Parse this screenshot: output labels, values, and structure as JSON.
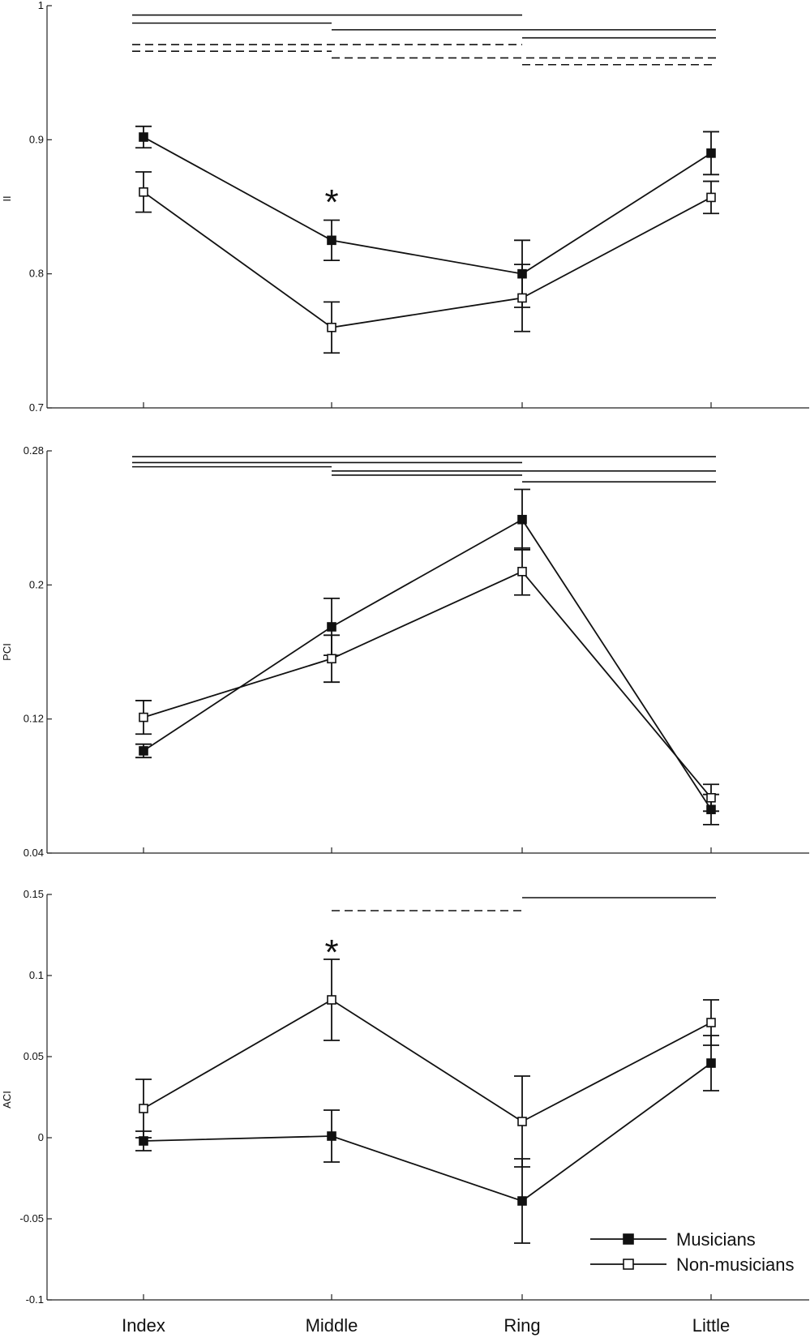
{
  "chart_data": [
    {
      "type": "line",
      "ylabel": "II",
      "ylim": [
        0.7,
        1.0
      ],
      "yticks": [
        "0.7",
        "0.8",
        "0.9",
        "1"
      ],
      "categories": [
        "Index",
        "Middle",
        "Ring",
        "Little"
      ],
      "series": [
        {
          "name": "Musicians",
          "marker": "filled-square",
          "values": [
            0.902,
            0.825,
            0.8,
            0.89
          ],
          "error": [
            0.008,
            0.015,
            0.025,
            0.016
          ]
        },
        {
          "name": "Non-musicians",
          "marker": "open-square",
          "values": [
            0.861,
            0.76,
            0.782,
            0.857
          ],
          "error": [
            0.015,
            0.019,
            0.025,
            0.012
          ]
        }
      ],
      "annotations": [
        {
          "text": "*",
          "category": "Middle",
          "value": 0.858
        }
      ],
      "significance_lines": [
        {
          "from": "Index",
          "to": "Ring",
          "level": 0.993,
          "style": "solid"
        },
        {
          "from": "Index",
          "to": "Middle",
          "level": 0.987,
          "style": "solid"
        },
        {
          "from": "Middle",
          "to": "Little",
          "level": 0.982,
          "style": "solid"
        },
        {
          "from": "Ring",
          "to": "Little",
          "level": 0.976,
          "style": "solid"
        },
        {
          "from": "Index",
          "to": "Ring",
          "level": 0.971,
          "style": "dashed"
        },
        {
          "from": "Index",
          "to": "Middle",
          "level": 0.966,
          "style": "dashed"
        },
        {
          "from": "Middle",
          "to": "Little",
          "level": 0.961,
          "style": "dashed"
        },
        {
          "from": "Ring",
          "to": "Little",
          "level": 0.956,
          "style": "dashed"
        }
      ]
    },
    {
      "type": "line",
      "ylabel": "PCI",
      "ylim": [
        0.04,
        0.28
      ],
      "yticks": [
        "0.04",
        "0.12",
        "0.2",
        "0.28"
      ],
      "categories": [
        "Index",
        "Middle",
        "Ring",
        "Little"
      ],
      "series": [
        {
          "name": "Musicians",
          "marker": "filled-square",
          "values": [
            0.101,
            0.175,
            0.239,
            0.066
          ],
          "error": [
            0.004,
            0.017,
            0.018,
            0.009
          ]
        },
        {
          "name": "Non-musicians",
          "marker": "open-square",
          "values": [
            0.121,
            0.156,
            0.208,
            0.073
          ],
          "error": [
            0.01,
            0.014,
            0.014,
            0.008
          ]
        }
      ],
      "significance_lines": [
        {
          "from": "Index",
          "to": "Little",
          "level": 0.2765,
          "style": "solid"
        },
        {
          "from": "Index",
          "to": "Ring",
          "level": 0.273,
          "style": "solid"
        },
        {
          "from": "Index",
          "to": "Middle",
          "level": 0.2705,
          "style": "solid"
        },
        {
          "from": "Middle",
          "to": "Little",
          "level": 0.268,
          "style": "solid"
        },
        {
          "from": "Middle",
          "to": "Ring",
          "level": 0.2655,
          "style": "solid"
        },
        {
          "from": "Ring",
          "to": "Little",
          "level": 0.2615,
          "style": "solid"
        }
      ]
    },
    {
      "type": "line",
      "ylabel": "ACI",
      "ylim": [
        -0.1,
        0.15
      ],
      "yticks": [
        "-0.1",
        "-0.05",
        "0",
        "0.05",
        "0.1",
        "0.15"
      ],
      "categories": [
        "Index",
        "Middle",
        "Ring",
        "Little"
      ],
      "series": [
        {
          "name": "Musicians",
          "marker": "filled-square",
          "values": [
            -0.002,
            0.001,
            -0.039,
            0.046
          ],
          "error": [
            0.006,
            0.016,
            0.026,
            0.017
          ]
        },
        {
          "name": "Non-musicians",
          "marker": "open-square",
          "values": [
            0.018,
            0.085,
            0.01,
            0.071
          ],
          "error": [
            0.018,
            0.025,
            0.028,
            0.014
          ]
        }
      ],
      "annotations": [
        {
          "text": "*",
          "category": "Middle",
          "value": 0.118
        }
      ],
      "significance_lines": [
        {
          "from": "Ring",
          "to": "Little",
          "level": 0.148,
          "style": "solid"
        },
        {
          "from": "Middle",
          "to": "Ring",
          "level": 0.14,
          "style": "dashed"
        }
      ]
    }
  ],
  "legend": {
    "position": "bottom-right",
    "items": [
      {
        "label": "Musicians",
        "marker": "filled-square"
      },
      {
        "label": "Non-musicians",
        "marker": "open-square"
      }
    ]
  },
  "xaxis": {
    "tick_labels": [
      "Index",
      "Middle",
      "Ring",
      "Little"
    ]
  }
}
